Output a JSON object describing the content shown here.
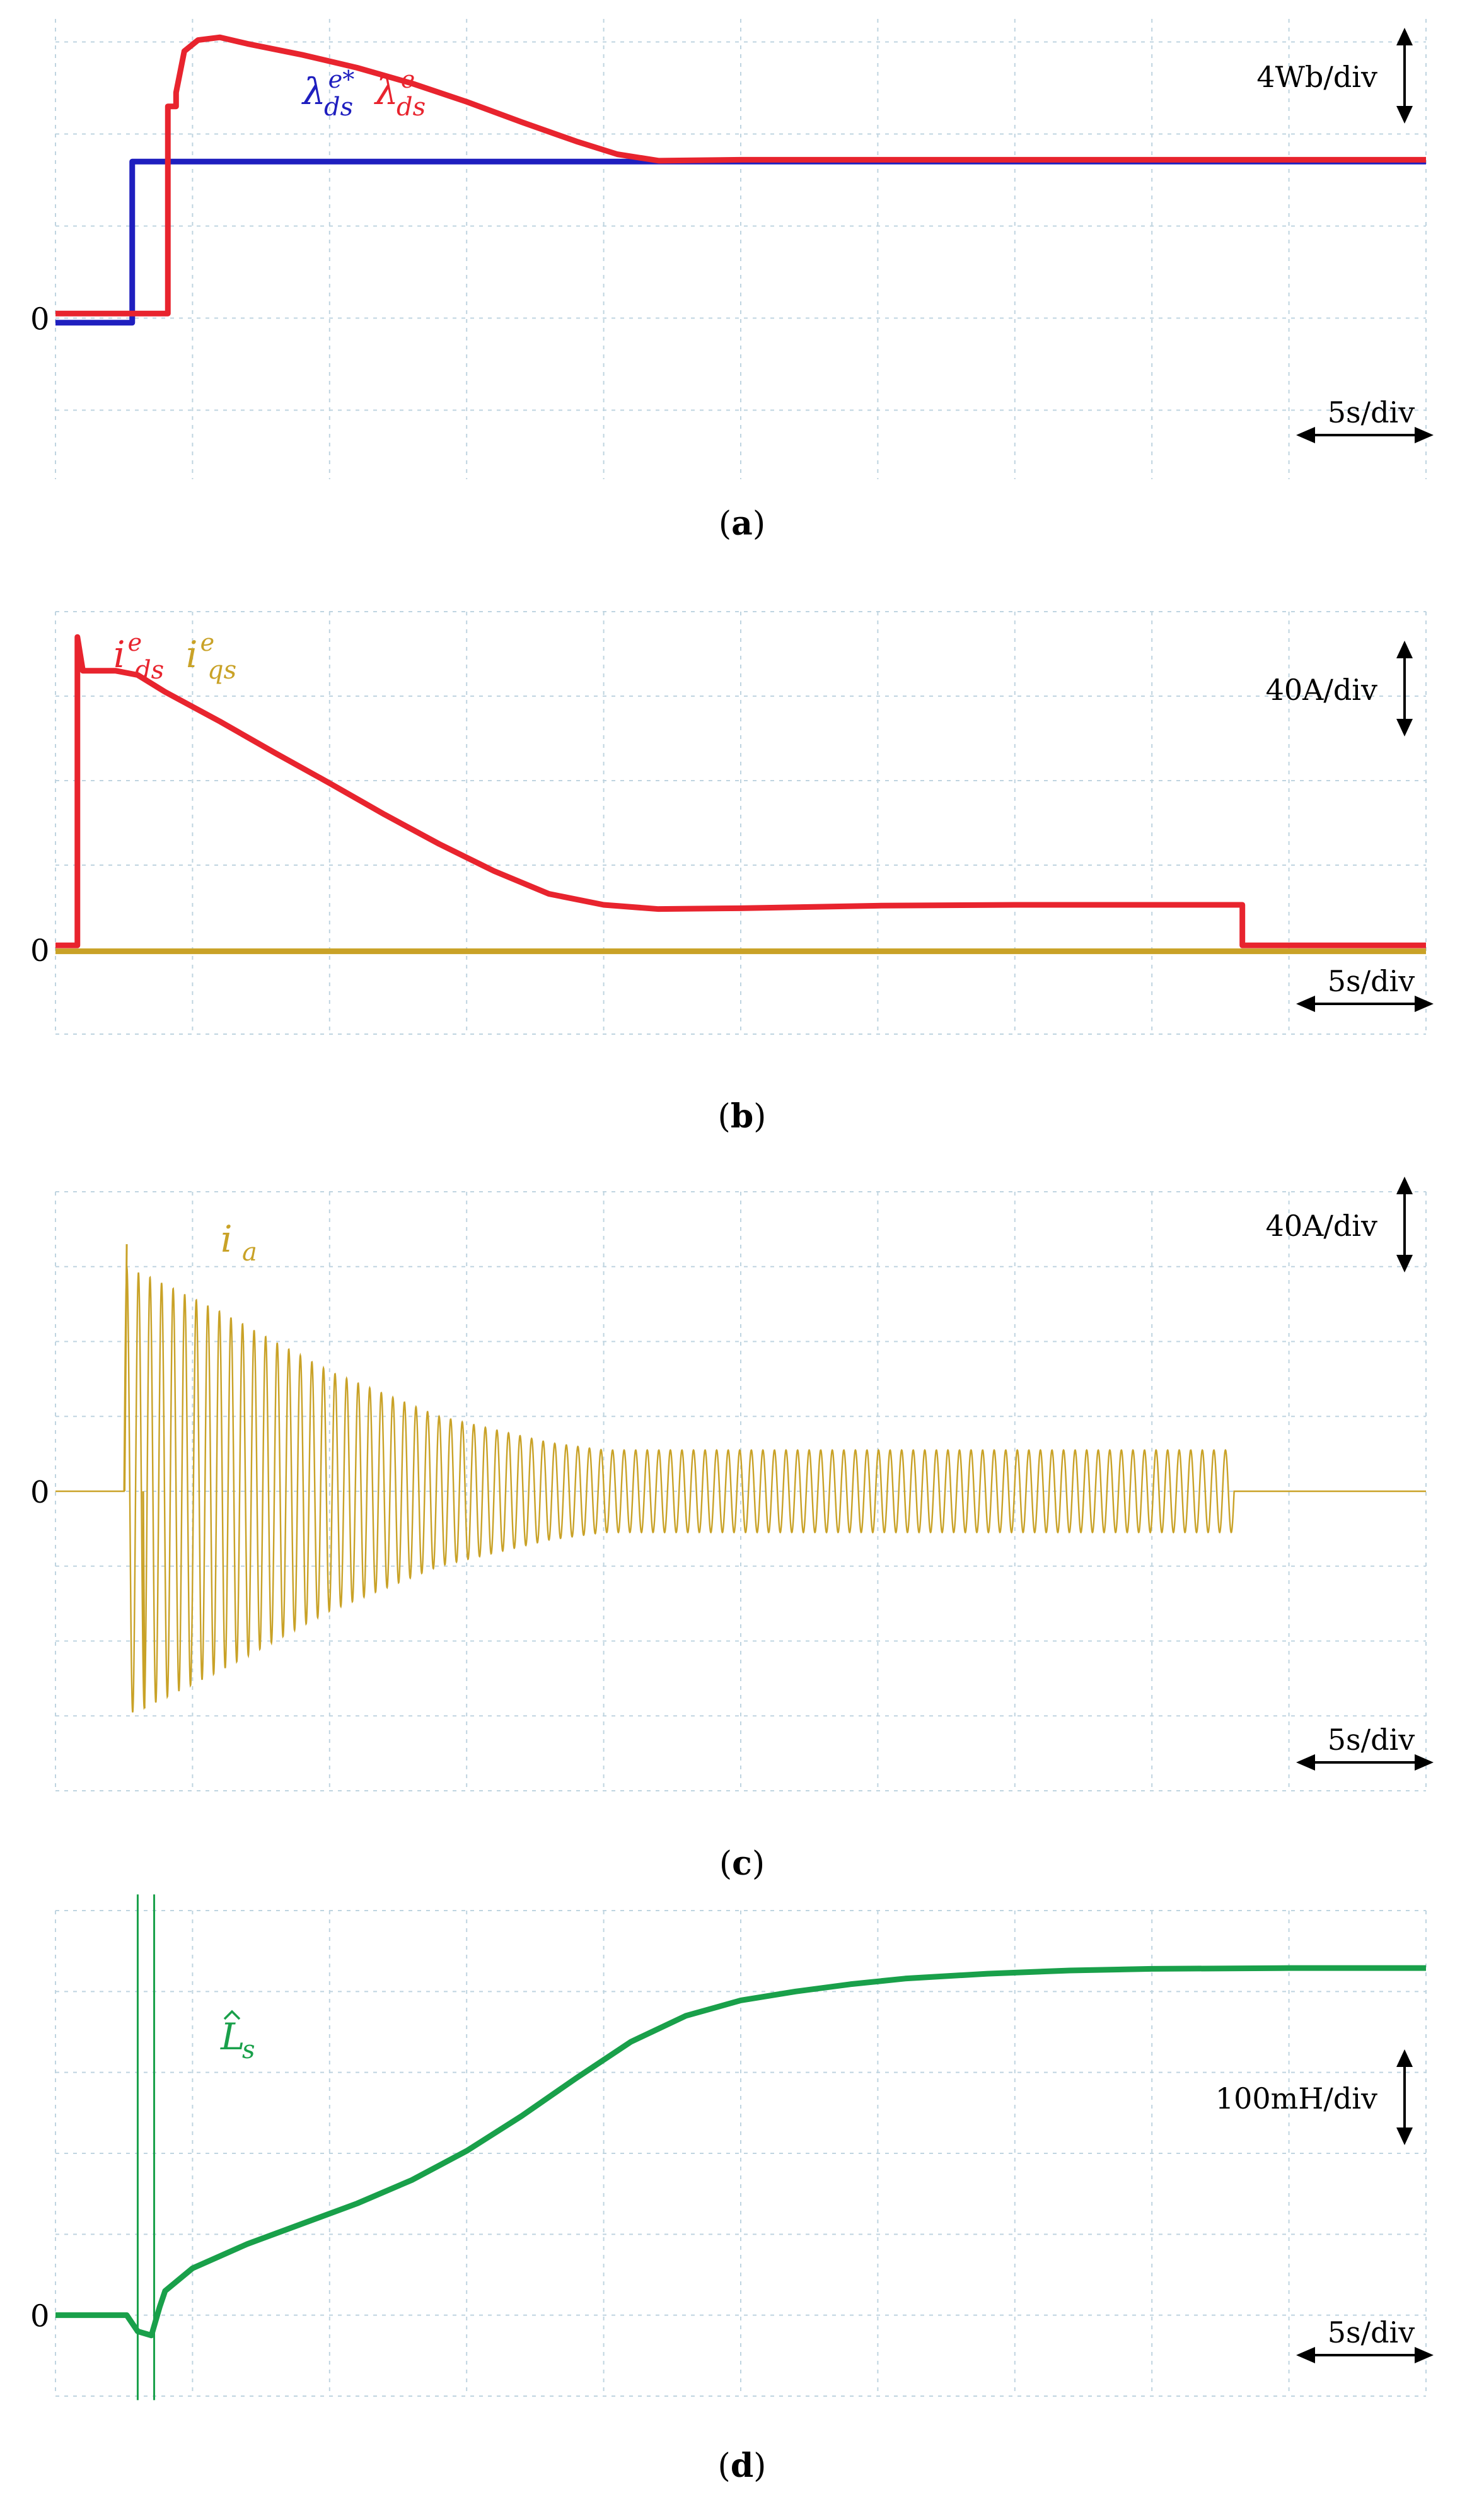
{
  "chart_data": [
    {
      "type": "line",
      "panel": "a",
      "caption_letter": "a",
      "scale_y": "4Wb/div",
      "scale_x": "5s/div",
      "zero_label": "0",
      "xlim": [
        0,
        50
      ],
      "ylim": [
        -1.75,
        3.25
      ],
      "legend": [
        {
          "sym": "λ",
          "sup": "e*",
          "sub": "ds",
          "color": "#1f1fbf"
        },
        {
          "sym": "λ",
          "sup": "e",
          "sub": "ds",
          "color": "#e8242e"
        }
      ],
      "series": [
        {
          "color": "#1f1fbf",
          "x": [
            0,
            2.8,
            2.8,
            50
          ],
          "y": [
            -0.05,
            -0.05,
            1.7,
            1.7
          ]
        },
        {
          "color": "#e8242e",
          "x": [
            0,
            4.1,
            4.1,
            4.4,
            4.4,
            4.7,
            5.2,
            6.0,
            7.0,
            9.0,
            11.0,
            13.0,
            15.0,
            17.0,
            19.0,
            20.5,
            22.0,
            25.0,
            35.0,
            50.0
          ],
          "y": [
            0.05,
            0.05,
            2.3,
            2.3,
            2.45,
            2.9,
            3.02,
            3.05,
            2.98,
            2.86,
            2.72,
            2.55,
            2.35,
            2.13,
            1.92,
            1.78,
            1.71,
            1.72,
            1.72,
            1.72
          ]
        }
      ]
    },
    {
      "type": "line",
      "panel": "b",
      "caption_letter": "b",
      "scale_y": "40A/div",
      "scale_x": "5s/div",
      "zero_label": "0",
      "xlim": [
        0,
        50
      ],
      "ylim": [
        -1.0,
        4.0
      ],
      "legend": [
        {
          "sym": "i",
          "sup": "e",
          "sub": "ds",
          "color": "#e8242e"
        },
        {
          "sym": "i",
          "sup": "e",
          "sub": "qs",
          "color": "#c9a227"
        }
      ],
      "series": [
        {
          "color": "#e8242e",
          "x": [
            0,
            0.8,
            0.8,
            1.0,
            2.2,
            3.0,
            4.0,
            6.0,
            8.0,
            10.0,
            12.0,
            14.0,
            16.0,
            18.0,
            20.0,
            22.0,
            25.0,
            30.0,
            35.0,
            40.0,
            43.3,
            43.3,
            50.0
          ],
          "y": [
            0.05,
            0.05,
            3.7,
            3.3,
            3.3,
            3.25,
            3.05,
            2.7,
            2.33,
            1.97,
            1.6,
            1.25,
            0.93,
            0.66,
            0.53,
            0.48,
            0.49,
            0.52,
            0.53,
            0.53,
            0.53,
            0.05,
            0.05
          ]
        },
        {
          "color": "#c9a227",
          "x": [
            0,
            50
          ],
          "y": [
            -0.02,
            -0.02
          ]
        }
      ]
    },
    {
      "type": "line",
      "panel": "c",
      "caption_letter": "c",
      "scale_y": "40A/div",
      "scale_x": "5s/div",
      "zero_label": "0",
      "xlim": [
        0,
        50
      ],
      "ylim": [
        -4.0,
        4.0
      ],
      "legend": [
        {
          "sym": "i",
          "sup": "",
          "sub": "a",
          "color": "#c9a227"
        }
      ],
      "series": [
        {
          "color": "#c9a227",
          "kind": "oscillation",
          "start": 2.5,
          "end": 43.0,
          "cycles": 96,
          "env_x": [
            2.5,
            3.5,
            6.0,
            10.0,
            14.0,
            18.0,
            20.0,
            30.0,
            43.0
          ],
          "env_y": [
            3.0,
            2.85,
            2.4,
            1.6,
            1.0,
            0.65,
            0.55,
            0.55,
            0.55
          ],
          "spike_up": 3.3,
          "spike_down": -2.9
        }
      ]
    },
    {
      "type": "line",
      "panel": "d",
      "caption_letter": "d",
      "scale_y": "100mH/div",
      "scale_x": "5s/div",
      "zero_label": "0",
      "xlim": [
        0,
        50
      ],
      "ylim": [
        -1.0,
        5.0
      ],
      "legend": [
        {
          "sym": "L",
          "sup": "",
          "sub": "s",
          "hat": true,
          "color": "#19a04a"
        }
      ],
      "series": [
        {
          "color": "#19a04a",
          "x": [
            0,
            2.6,
            3.0,
            3.5,
            3.8,
            4.0,
            5.0,
            7.0,
            9.0,
            11.0,
            13.0,
            15.0,
            17.0,
            19.0,
            21.0,
            23.0,
            25.0,
            27.0,
            29.0,
            31.0,
            34.0,
            37.0,
            40.0,
            45.0,
            50.0
          ],
          "y": [
            0.0,
            0.0,
            -0.2,
            -0.25,
            0.1,
            0.3,
            0.58,
            0.88,
            1.13,
            1.38,
            1.67,
            2.03,
            2.46,
            2.93,
            3.38,
            3.7,
            3.89,
            4.0,
            4.09,
            4.16,
            4.22,
            4.26,
            4.28,
            4.29,
            4.29
          ]
        },
        {
          "color": "#19a04a",
          "kind": "spikes",
          "x": [
            3.0,
            3.6
          ],
          "y_top": 5.2,
          "y_bottom": -1.05
        }
      ]
    }
  ]
}
